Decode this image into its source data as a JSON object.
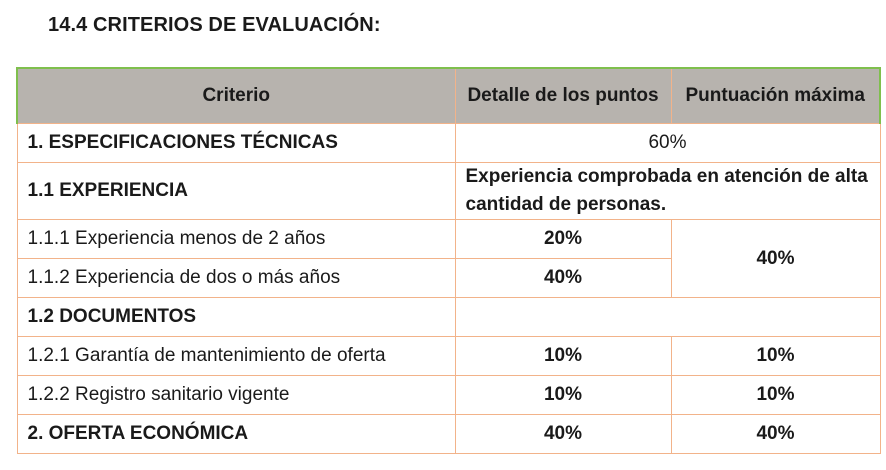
{
  "heading": "14.4 CRITERIOS DE EVALUACIÓN:",
  "table": {
    "headers": {
      "criterio": "Criterio",
      "detalle": "Detalle de los puntos",
      "puntuacion": "Puntuación máxima"
    },
    "rows": {
      "especificaciones": {
        "label": "1. ESPECIFICACIONES TÉCNICAS",
        "value": "60%"
      },
      "experiencia": {
        "label": "1.1 EXPERIENCIA",
        "description": "Experiencia comprobada en atención de alta cantidad de personas."
      },
      "exp_menos": {
        "label": "1.1.1 Experiencia menos de 2 años",
        "detalle": "20%"
      },
      "exp_mas": {
        "label": "1.1.2 Experiencia de dos o más años",
        "detalle": "40%"
      },
      "exp_max": "40%",
      "documentos": {
        "label": "1.2 DOCUMENTOS"
      },
      "garantia": {
        "label": "1.2.1 Garantía de mantenimiento de oferta",
        "detalle": "10%",
        "maxima": "10%"
      },
      "registro": {
        "label": "1.2.2 Registro sanitario vigente",
        "detalle": "10%",
        "maxima": "10%"
      },
      "oferta": {
        "label": "2. OFERTA ECONÓMICA",
        "detalle": "40%",
        "maxima": "40%"
      }
    }
  }
}
